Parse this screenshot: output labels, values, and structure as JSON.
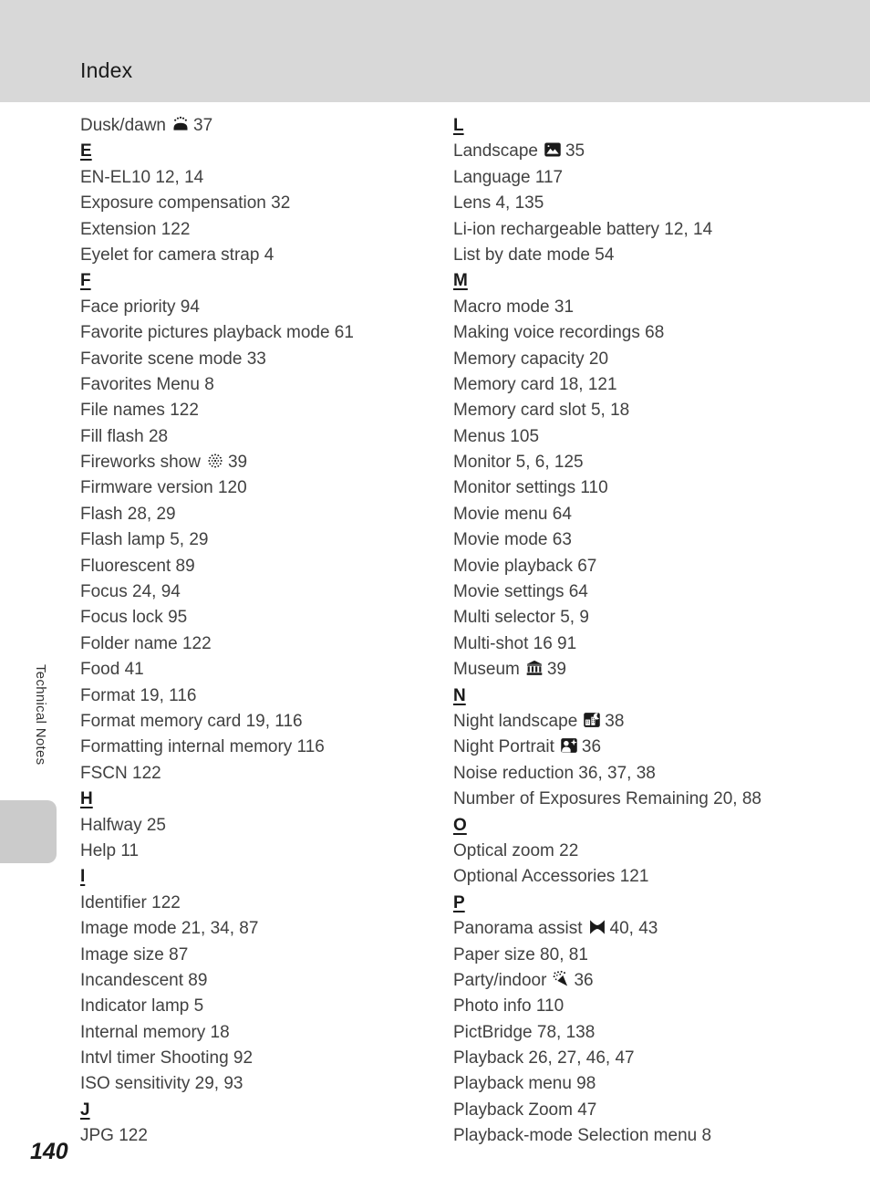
{
  "page": {
    "header_title": "Index",
    "sidebar_label": "Technical Notes",
    "page_number": "140",
    "colors": {
      "header_bg": "#d8d8d8",
      "tab_bg": "#cbcbcb",
      "body_text": "#414141",
      "section_text": "#1a1a1a"
    }
  },
  "columns": {
    "left": [
      {
        "type": "entry",
        "label": "Dusk/dawn",
        "icon": "dusk-dawn-icon",
        "pages": "37"
      },
      {
        "type": "section",
        "label": "E"
      },
      {
        "type": "entry",
        "label": "EN-EL10",
        "icon": null,
        "pages": "12, 14"
      },
      {
        "type": "entry",
        "label": "Exposure compensation",
        "icon": null,
        "pages": "32"
      },
      {
        "type": "entry",
        "label": "Extension",
        "icon": null,
        "pages": "122"
      },
      {
        "type": "entry",
        "label": "Eyelet for camera strap",
        "icon": null,
        "pages": "4"
      },
      {
        "type": "section",
        "label": "F"
      },
      {
        "type": "entry",
        "label": "Face priority",
        "icon": null,
        "pages": "94"
      },
      {
        "type": "entry",
        "label": "Favorite pictures playback mode",
        "icon": null,
        "pages": "61"
      },
      {
        "type": "entry",
        "label": "Favorite scene mode",
        "icon": null,
        "pages": "33"
      },
      {
        "type": "entry",
        "label": "Favorites Menu",
        "icon": null,
        "pages": "8"
      },
      {
        "type": "entry",
        "label": "File names",
        "icon": null,
        "pages": "122"
      },
      {
        "type": "entry",
        "label": "Fill flash",
        "icon": null,
        "pages": "28"
      },
      {
        "type": "entry",
        "label": "Fireworks show",
        "icon": "fireworks-icon",
        "pages": "39"
      },
      {
        "type": "entry",
        "label": "Firmware version",
        "icon": null,
        "pages": "120"
      },
      {
        "type": "entry",
        "label": "Flash",
        "icon": null,
        "pages": "28, 29"
      },
      {
        "type": "entry",
        "label": "Flash lamp",
        "icon": null,
        "pages": "5, 29"
      },
      {
        "type": "entry",
        "label": "Fluorescent",
        "icon": null,
        "pages": "89"
      },
      {
        "type": "entry",
        "label": "Focus",
        "icon": null,
        "pages": "24, 94"
      },
      {
        "type": "entry",
        "label": "Focus lock",
        "icon": null,
        "pages": "95"
      },
      {
        "type": "entry",
        "label": "Folder name",
        "icon": null,
        "pages": "122"
      },
      {
        "type": "entry",
        "label": "Food",
        "icon": null,
        "pages": "41"
      },
      {
        "type": "entry",
        "label": "Format",
        "icon": null,
        "pages": "19, 116"
      },
      {
        "type": "entry",
        "label": "Format memory card",
        "icon": null,
        "pages": "19, 116"
      },
      {
        "type": "entry",
        "label": "Formatting internal memory",
        "icon": null,
        "pages": "116"
      },
      {
        "type": "entry",
        "label": "FSCN",
        "icon": null,
        "pages": "122"
      },
      {
        "type": "section",
        "label": "H"
      },
      {
        "type": "entry",
        "label": "Halfway",
        "icon": null,
        "pages": "25"
      },
      {
        "type": "entry",
        "label": "Help",
        "icon": null,
        "pages": "11"
      },
      {
        "type": "section",
        "label": "I"
      },
      {
        "type": "entry",
        "label": "Identifier",
        "icon": null,
        "pages": "122"
      },
      {
        "type": "entry",
        "label": "Image mode",
        "icon": null,
        "pages": "21, 34, 87"
      },
      {
        "type": "entry",
        "label": "Image size",
        "icon": null,
        "pages": "87"
      },
      {
        "type": "entry",
        "label": "Incandescent",
        "icon": null,
        "pages": "89"
      },
      {
        "type": "entry",
        "label": "Indicator lamp",
        "icon": null,
        "pages": "5"
      },
      {
        "type": "entry",
        "label": "Internal memory",
        "icon": null,
        "pages": "18"
      },
      {
        "type": "entry",
        "label": "Intvl timer Shooting",
        "icon": null,
        "pages": "92"
      },
      {
        "type": "entry",
        "label": "ISO sensitivity",
        "icon": null,
        "pages": "29, 93"
      },
      {
        "type": "section",
        "label": "J"
      },
      {
        "type": "entry",
        "label": "JPG",
        "icon": null,
        "pages": "122"
      }
    ],
    "right": [
      {
        "type": "section",
        "label": "L"
      },
      {
        "type": "entry",
        "label": "Landscape",
        "icon": "landscape-icon",
        "pages": "35"
      },
      {
        "type": "entry",
        "label": "Language",
        "icon": null,
        "pages": "117"
      },
      {
        "type": "entry",
        "label": "Lens",
        "icon": null,
        "pages": "4, 135"
      },
      {
        "type": "entry",
        "label": "Li-ion rechargeable battery",
        "icon": null,
        "pages": "12, 14"
      },
      {
        "type": "entry",
        "label": "List by date mode",
        "icon": null,
        "pages": "54"
      },
      {
        "type": "section",
        "label": "M"
      },
      {
        "type": "entry",
        "label": "Macro mode",
        "icon": null,
        "pages": "31"
      },
      {
        "type": "entry",
        "label": "Making voice recordings",
        "icon": null,
        "pages": "68"
      },
      {
        "type": "entry",
        "label": "Memory capacity",
        "icon": null,
        "pages": "20"
      },
      {
        "type": "entry",
        "label": "Memory card",
        "icon": null,
        "pages": "18, 121"
      },
      {
        "type": "entry",
        "label": "Memory card slot",
        "icon": null,
        "pages": "5, 18"
      },
      {
        "type": "entry",
        "label": "Menus",
        "icon": null,
        "pages": "105"
      },
      {
        "type": "entry",
        "label": "Monitor",
        "icon": null,
        "pages": "5, 6, 125"
      },
      {
        "type": "entry",
        "label": "Monitor settings",
        "icon": null,
        "pages": "110"
      },
      {
        "type": "entry",
        "label": "Movie menu",
        "icon": null,
        "pages": "64"
      },
      {
        "type": "entry",
        "label": "Movie mode",
        "icon": null,
        "pages": "63"
      },
      {
        "type": "entry",
        "label": "Movie playback",
        "icon": null,
        "pages": "67"
      },
      {
        "type": "entry",
        "label": "Movie settings",
        "icon": null,
        "pages": "64"
      },
      {
        "type": "entry",
        "label": "Multi selector",
        "icon": null,
        "pages": "5, 9"
      },
      {
        "type": "entry",
        "label": "Multi-shot 16",
        "icon": null,
        "pages": "91"
      },
      {
        "type": "entry",
        "label": "Museum",
        "icon": "museum-icon",
        "pages": "39"
      },
      {
        "type": "section",
        "label": "N"
      },
      {
        "type": "entry",
        "label": "Night landscape",
        "icon": "night-landscape-icon",
        "pages": "38"
      },
      {
        "type": "entry",
        "label": "Night Portrait",
        "icon": "night-portrait-icon",
        "pages": "36"
      },
      {
        "type": "entry",
        "label": "Noise reduction",
        "icon": null,
        "pages": "36, 37, 38"
      },
      {
        "type": "entry",
        "label": "Number of Exposures Remaining",
        "icon": null,
        "pages": "20, 88"
      },
      {
        "type": "section",
        "label": "O"
      },
      {
        "type": "entry",
        "label": "Optical zoom",
        "icon": null,
        "pages": "22"
      },
      {
        "type": "entry",
        "label": "Optional Accessories",
        "icon": null,
        "pages": "121"
      },
      {
        "type": "section",
        "label": "P"
      },
      {
        "type": "entry",
        "label": "Panorama assist",
        "icon": "panorama-assist-icon",
        "pages": "40, 43"
      },
      {
        "type": "entry",
        "label": "Paper size",
        "icon": null,
        "pages": "80, 81"
      },
      {
        "type": "entry",
        "label": "Party/indoor",
        "icon": "party-indoor-icon",
        "pages": "36"
      },
      {
        "type": "entry",
        "label": "Photo info",
        "icon": null,
        "pages": "110"
      },
      {
        "type": "entry",
        "label": "PictBridge",
        "icon": null,
        "pages": "78, 138"
      },
      {
        "type": "entry",
        "label": "Playback",
        "icon": null,
        "pages": "26, 27, 46, 47"
      },
      {
        "type": "entry",
        "label": "Playback menu",
        "icon": null,
        "pages": "98"
      },
      {
        "type": "entry",
        "label": "Playback Zoom",
        "icon": null,
        "pages": "47"
      },
      {
        "type": "entry",
        "label": "Playback-mode Selection menu",
        "icon": null,
        "pages": "8"
      }
    ]
  }
}
